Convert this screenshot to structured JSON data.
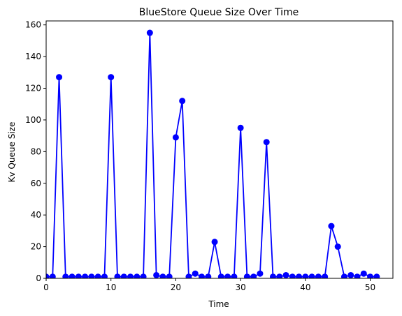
{
  "chart_data": {
    "type": "line",
    "title": "BlueStore Queue Size Over Time",
    "xlabel": "Time",
    "ylabel": "Kv Queue Size",
    "xlim": [
      0,
      53.5
    ],
    "ylim": [
      0,
      162.5
    ],
    "xticks": [
      0,
      10,
      20,
      30,
      40,
      50
    ],
    "yticks": [
      0,
      20,
      40,
      60,
      80,
      100,
      120,
      140,
      160
    ],
    "grid": false,
    "color": "#0000ff",
    "marker": "circle",
    "x": [
      0,
      1,
      2,
      3,
      4,
      5,
      6,
      7,
      8,
      9,
      10,
      11,
      12,
      13,
      14,
      15,
      16,
      17,
      18,
      19,
      20,
      21,
      22,
      23,
      24,
      25,
      26,
      27,
      28,
      29,
      30,
      31,
      32,
      33,
      34,
      35,
      36,
      37,
      38,
      39,
      40,
      41,
      42,
      43,
      44,
      45,
      46,
      47,
      48,
      49,
      50,
      51
    ],
    "y": [
      1,
      1,
      127,
      1,
      1,
      1,
      1,
      1,
      1,
      1,
      127,
      1,
      1,
      1,
      1,
      1,
      155,
      2,
      1,
      1,
      89,
      112,
      1,
      3,
      1,
      1,
      23,
      1,
      1,
      1,
      95,
      1,
      1,
      3,
      86,
      1,
      1,
      2,
      1,
      1,
      1,
      1,
      1,
      1,
      33,
      20,
      1,
      2,
      1,
      3,
      1,
      1
    ]
  }
}
